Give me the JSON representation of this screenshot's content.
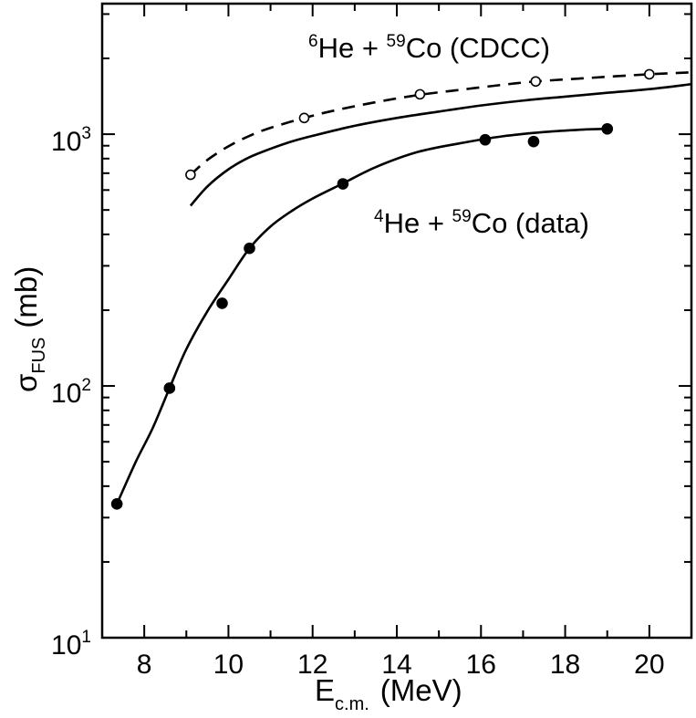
{
  "chart_data": {
    "type": "scatter",
    "xlabel": {
      "symbol": "E",
      "subscript": "c.m.",
      "unit": "(MeV)"
    },
    "ylabel": {
      "symbol": "σ",
      "subscript": "FUS",
      "unit": "(mb)"
    },
    "xlim": [
      7,
      21
    ],
    "ylim": [
      10,
      3300
    ],
    "yscale": "log",
    "x_ticks": [
      8,
      10,
      12,
      14,
      16,
      18,
      20
    ],
    "y_major_ticks": [
      {
        "value": 10,
        "base": "10",
        "exp": "1"
      },
      {
        "value": 100,
        "base": "10",
        "exp": "2"
      },
      {
        "value": 1000,
        "base": "10",
        "exp": "3"
      }
    ],
    "grid": false,
    "legend": "none",
    "series": [
      {
        "name": "data",
        "kind": "markers",
        "marker": "filled-circle",
        "points": [
          [
            7.35,
            34
          ],
          [
            8.6,
            98
          ],
          [
            9.85,
            213
          ],
          [
            10.5,
            352
          ],
          [
            12.72,
            635
          ],
          [
            16.1,
            950
          ],
          [
            17.25,
            935
          ],
          [
            19.0,
            1050
          ]
        ]
      },
      {
        "name": "data-fit",
        "kind": "line",
        "style": "solid",
        "points": [
          [
            7.35,
            34
          ],
          [
            7.8,
            50
          ],
          [
            8.2,
            68
          ],
          [
            8.6,
            98
          ],
          [
            9.0,
            140
          ],
          [
            9.5,
            198
          ],
          [
            10.0,
            265
          ],
          [
            10.5,
            352
          ],
          [
            11.0,
            430
          ],
          [
            11.5,
            495
          ],
          [
            12.0,
            555
          ],
          [
            12.7,
            635
          ],
          [
            13.5,
            740
          ],
          [
            14.5,
            850
          ],
          [
            15.5,
            920
          ],
          [
            16.5,
            980
          ],
          [
            17.5,
            1020
          ],
          [
            18.5,
            1045
          ],
          [
            19.0,
            1050
          ]
        ]
      },
      {
        "name": "calc-solid",
        "kind": "line",
        "style": "solid",
        "points": [
          [
            9.1,
            520
          ],
          [
            9.5,
            620
          ],
          [
            10.0,
            725
          ],
          [
            10.5,
            810
          ],
          [
            11.0,
            875
          ],
          [
            11.5,
            935
          ],
          [
            12.0,
            985
          ],
          [
            13.0,
            1080
          ],
          [
            14.0,
            1160
          ],
          [
            15.0,
            1230
          ],
          [
            16.0,
            1300
          ],
          [
            17.0,
            1360
          ],
          [
            18.0,
            1410
          ],
          [
            19.0,
            1460
          ],
          [
            20.0,
            1510
          ],
          [
            21.0,
            1580
          ]
        ]
      },
      {
        "name": "CDCC",
        "kind": "line",
        "style": "dashed",
        "points": [
          [
            9.1,
            690
          ],
          [
            9.5,
            790
          ],
          [
            10.0,
            895
          ],
          [
            10.5,
            985
          ],
          [
            11.0,
            1060
          ],
          [
            11.8,
            1160
          ],
          [
            12.5,
            1240
          ],
          [
            13.5,
            1340
          ],
          [
            14.5,
            1430
          ],
          [
            15.5,
            1500
          ],
          [
            16.5,
            1570
          ],
          [
            17.3,
            1620
          ],
          [
            18.5,
            1670
          ],
          [
            20.0,
            1730
          ],
          [
            21.0,
            1760
          ]
        ]
      },
      {
        "name": "CDCC-markers",
        "kind": "markers",
        "marker": "open-circle",
        "points": [
          [
            9.1,
            690
          ],
          [
            11.8,
            1160
          ],
          [
            14.55,
            1440
          ],
          [
            17.3,
            1620
          ],
          [
            20.0,
            1730
          ]
        ]
      }
    ],
    "annotations": [
      {
        "name": "annotation-6he",
        "parts": {
          "a_sup": "6",
          "a_base": "He + ",
          "b_sup": "59",
          "b_base": "Co (CDCC)"
        }
      },
      {
        "name": "annotation-4he",
        "parts": {
          "a_sup": "4",
          "a_base": "He + ",
          "b_sup": "59",
          "b_base": "Co (data)"
        }
      }
    ]
  }
}
